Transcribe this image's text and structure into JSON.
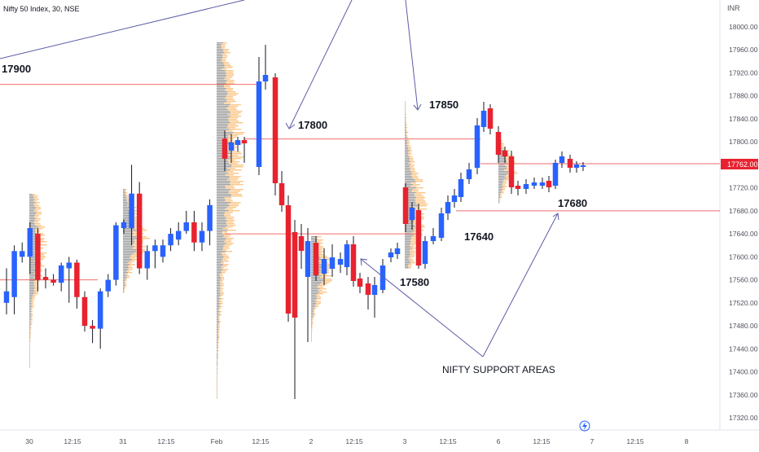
{
  "symbol_header": "Nifty 50 Index, 30, NSE",
  "currency_label": "INR",
  "colors": {
    "up": "#2962ff",
    "down": "#e8222f",
    "level_line": "#f26d6d",
    "annotation": "#5c5ca8",
    "volume_profile_left": "#9e9e9e",
    "volume_profile_right": "#fbc687",
    "price_tag_bg": "#e8222f",
    "text": "#131722",
    "axis_text": "#50535e"
  },
  "price_axis": {
    "ticks": [
      "18000.00",
      "17960.00",
      "17920.00",
      "17880.00",
      "17840.00",
      "17800.00",
      "17760.00",
      "17720.00",
      "17680.00",
      "17640.00",
      "17600.00",
      "17560.00",
      "17520.00",
      "17480.00",
      "17440.00",
      "17400.00",
      "17360.00",
      "17320.00"
    ],
    "current_price": "17762.00"
  },
  "time_axis": {
    "ticks": [
      "30",
      "12:15",
      "31",
      "12:15",
      "Feb",
      "12:15",
      "2",
      "12:15",
      "3",
      "12:15",
      "6",
      "12:15",
      "7",
      "12:15",
      "8"
    ]
  },
  "annotations": {
    "level_17900": "17900",
    "level_17800": "17800",
    "level_17850": "17850",
    "level_17640": "17640",
    "level_17580": "17580",
    "level_17680": "17680",
    "support_note": "NIFTY SUPPORT AREAS"
  },
  "chart_data": {
    "type": "candlestick",
    "title": "Nifty 50 Index, 30, NSE",
    "ylabel": "INR",
    "ylim": [
      17300,
      18040
    ],
    "grid": false,
    "horizontal_levels": [
      17900,
      17805,
      17762,
      17640,
      17680,
      17560
    ],
    "series": [
      {
        "name": "Nifty 50 Index",
        "values": [
          {
            "x": "30 09:15",
            "open": 17520,
            "high": 17580,
            "low": 17500,
            "close": 17540
          },
          {
            "x": "30 09:45",
            "open": 17530,
            "high": 17620,
            "low": 17500,
            "close": 17610
          },
          {
            "x": "30 10:15",
            "open": 17600,
            "high": 17625,
            "low": 17590,
            "close": 17610
          },
          {
            "x": "30 10:45",
            "open": 17600,
            "high": 17660,
            "low": 17570,
            "close": 17650
          },
          {
            "x": "30 11:15",
            "open": 17640,
            "high": 17650,
            "low": 17540,
            "close": 17560
          },
          {
            "x": "30 11:45",
            "open": 17565,
            "high": 17580,
            "low": 17545,
            "close": 17560
          },
          {
            "x": "30 12:15",
            "open": 17560,
            "high": 17570,
            "low": 17550,
            "close": 17555
          },
          {
            "x": "30 12:45",
            "open": 17555,
            "high": 17590,
            "low": 17540,
            "close": 17585
          },
          {
            "x": "30 13:15",
            "open": 17580,
            "high": 17600,
            "low": 17520,
            "close": 17590
          },
          {
            "x": "30 13:45",
            "open": 17590,
            "high": 17595,
            "low": 17510,
            "close": 17530
          },
          {
            "x": "30 14:15",
            "open": 17530,
            "high": 17540,
            "low": 17470,
            "close": 17480
          },
          {
            "x": "30 14:45",
            "open": 17480,
            "high": 17490,
            "low": 17450,
            "close": 17475
          },
          {
            "x": "31 09:15",
            "open": 17475,
            "high": 17545,
            "low": 17440,
            "close": 17540
          },
          {
            "x": "31 09:45",
            "open": 17540,
            "high": 17570,
            "low": 17530,
            "close": 17560
          },
          {
            "x": "31 10:15",
            "open": 17560,
            "high": 17660,
            "low": 17550,
            "close": 17655
          },
          {
            "x": "31 10:45",
            "open": 17650,
            "high": 17665,
            "low": 17640,
            "close": 17660
          },
          {
            "x": "31 11:15",
            "open": 17650,
            "high": 17760,
            "low": 17620,
            "close": 17710
          },
          {
            "x": "31 11:45",
            "open": 17710,
            "high": 17730,
            "low": 17570,
            "close": 17580
          },
          {
            "x": "31 12:15",
            "open": 17580,
            "high": 17620,
            "low": 17560,
            "close": 17610
          },
          {
            "x": "31 12:45",
            "open": 17610,
            "high": 17630,
            "low": 17580,
            "close": 17620
          },
          {
            "x": "31 13:15",
            "open": 17600,
            "high": 17630,
            "low": 17590,
            "close": 17620
          },
          {
            "x": "31 13:45",
            "open": 17620,
            "high": 17650,
            "low": 17610,
            "close": 17640
          },
          {
            "x": "31 14:15",
            "open": 17630,
            "high": 17660,
            "low": 17620,
            "close": 17645
          },
          {
            "x": "31 14:45",
            "open": 17645,
            "high": 17680,
            "low": 17640,
            "close": 17660
          },
          {
            "x": "Feb 09:15",
            "open": 17660,
            "high": 17680,
            "low": 17610,
            "close": 17625
          },
          {
            "x": "Feb 09:45",
            "open": 17625,
            "high": 17660,
            "low": 17610,
            "close": 17645
          },
          {
            "x": "Feb 10:15",
            "open": 17645,
            "high": 17700,
            "low": 17620,
            "close": 17690
          }
        ]
      }
    ]
  }
}
